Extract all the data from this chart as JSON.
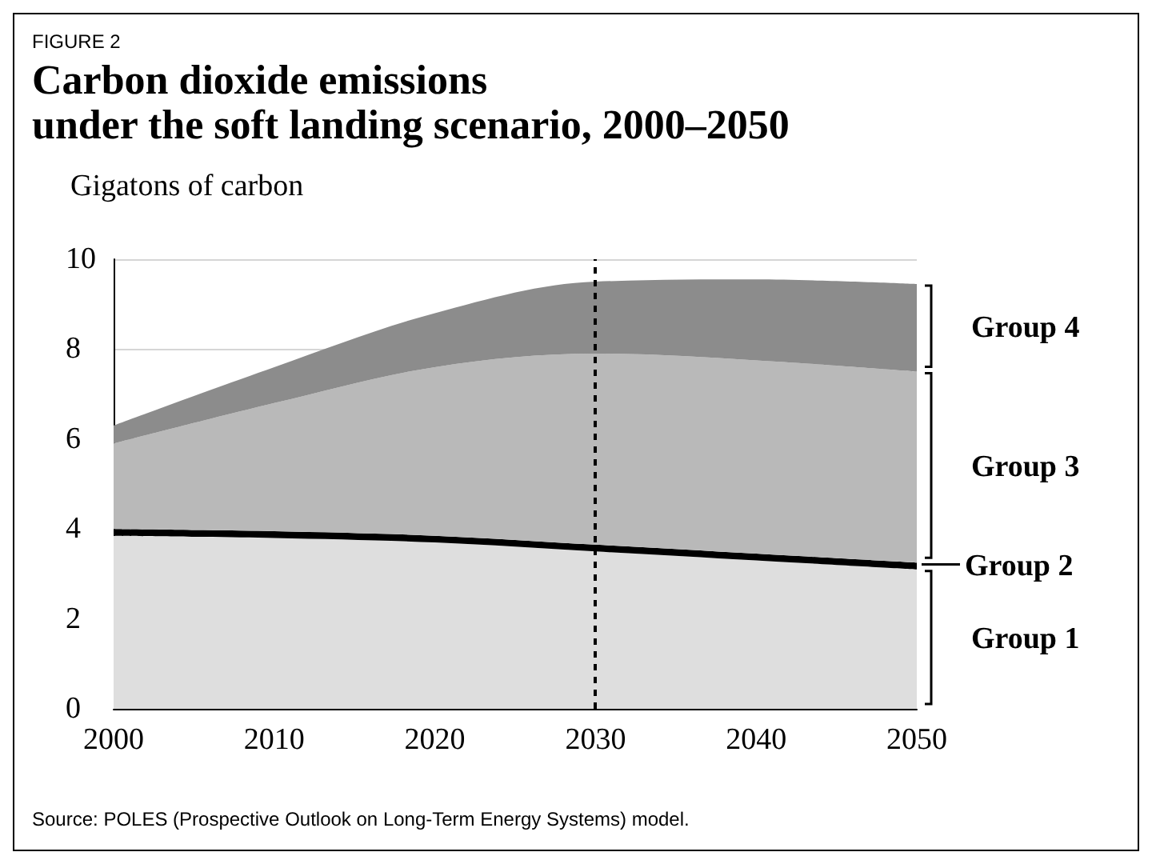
{
  "chart_data": {
    "type": "area",
    "title": "Carbon dioxide emissions\nunder the soft landing scenario, 2000–2050",
    "ylabel": "Gigatons of carbon",
    "annotations": [
      "FIGURE 2",
      "Source: POLES (Prospective Outlook on Long-Term Energy Systems) model."
    ],
    "x": [
      2000,
      2010,
      2020,
      2030,
      2040,
      2050
    ],
    "stacked": true,
    "series": [
      {
        "name": "Group 1",
        "color": "#dedede",
        "values": [
          3.85,
          3.8,
          3.7,
          3.5,
          3.3,
          3.1
        ]
      },
      {
        "name": "Group 2",
        "color": "#000000",
        "values": [
          0.15,
          0.15,
          0.15,
          0.15,
          0.15,
          0.15
        ]
      },
      {
        "name": "Group 3",
        "color": "#b9b9b9",
        "values": [
          1.9,
          2.85,
          3.75,
          4.25,
          4.3,
          4.25
        ]
      },
      {
        "name": "Group 4",
        "color": "#8c8c8c",
        "values": [
          0.4,
          0.8,
          1.2,
          1.6,
          1.8,
          1.95
        ]
      }
    ],
    "xlim": [
      2000,
      2050
    ],
    "xticks": [
      2000,
      2010,
      2020,
      2030,
      2040,
      2050
    ],
    "ylim": [
      0,
      10
    ],
    "yticks": [
      0,
      2,
      4,
      6,
      8,
      10
    ],
    "grid": "y",
    "ref_lines": [
      {
        "axis": "x",
        "value": 2030,
        "line_style": "dashed",
        "color": "#000000"
      }
    ]
  }
}
